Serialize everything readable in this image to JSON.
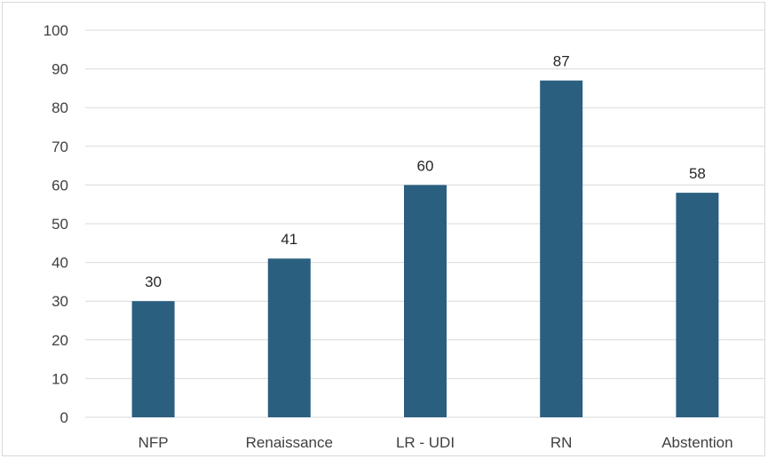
{
  "chart_data": {
    "type": "bar",
    "title": "",
    "xlabel": "",
    "ylabel": "",
    "categories": [
      "NFP",
      "Renaissance",
      "LR - UDI",
      "RN",
      "Abstention"
    ],
    "values": [
      30,
      41,
      60,
      87,
      58
    ],
    "ylim": [
      0,
      100
    ],
    "yticks": [
      0,
      10,
      20,
      30,
      40,
      50,
      60,
      70,
      80,
      90,
      100
    ],
    "grid": true,
    "legend": "none",
    "bar_color": "#2a5f80",
    "data_labels": true
  }
}
